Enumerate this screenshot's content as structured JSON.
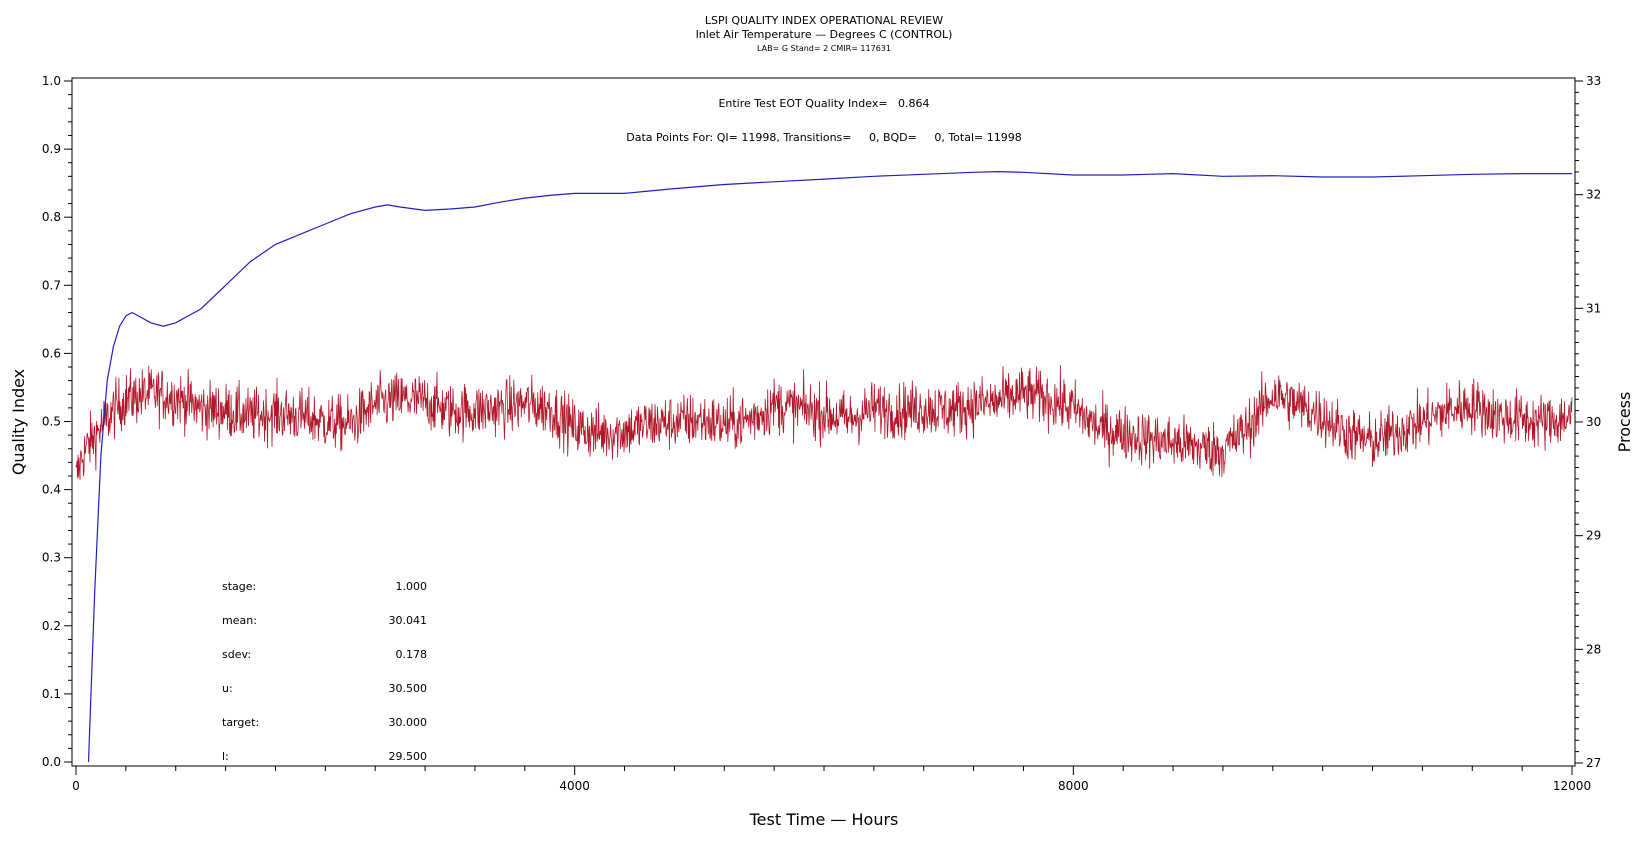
{
  "chart_data": {
    "type": "line",
    "title": "LSPI QUALITY INDEX OPERATIONAL REVIEW",
    "subtitle": "Inlet Air Temperature — Degrees C (CONTROL)",
    "subtitle2": "LAB= G Stand= 2 CMIR= 117631",
    "xlabel": "Test Time — Hours",
    "ylabel_left": "Quality Index",
    "ylabel_right": "Process",
    "xlim": [
      0,
      12000
    ],
    "ylim_left": [
      0.0,
      1.0
    ],
    "ylim_right": [
      27,
      33
    ],
    "x_ticks": [
      "0",
      "4000",
      "8000",
      "12000"
    ],
    "y_ticks_left": [
      "0.0",
      "0.1",
      "0.2",
      "0.3",
      "0.4",
      "0.5",
      "0.6",
      "0.7",
      "0.8",
      "0.9",
      "1.0"
    ],
    "y_ticks_right": [
      "27",
      "28",
      "29",
      "30",
      "31",
      "32",
      "33"
    ],
    "grid": false,
    "annotations": {
      "quality_index": "Entire Test EOT Quality Index=   0.864",
      "data_points": "Data Points For: QI= 11998, Transitions=     0, BQD=     0, Total= 11998"
    },
    "stats": [
      {
        "label": "stage:",
        "value": "1.000"
      },
      {
        "label": "mean:",
        "value": "30.041"
      },
      {
        "label": "sdev:",
        "value": "0.178"
      },
      {
        "label": "u:",
        "value": "30.500"
      },
      {
        "label": "target:",
        "value": "30.000"
      },
      {
        "label": "l:",
        "value": "29.500"
      }
    ],
    "series": [
      {
        "axis": "left",
        "color": "#2020c0",
        "x": [
          100,
          150,
          200,
          250,
          300,
          350,
          400,
          450,
          500,
          600,
          700,
          800,
          900,
          1000,
          1200,
          1400,
          1600,
          1800,
          2000,
          2200,
          2400,
          2500,
          2600,
          2800,
          3000,
          3200,
          3400,
          3600,
          3800,
          4000,
          4400,
          4800,
          5200,
          5600,
          6000,
          6400,
          6800,
          7200,
          7400,
          7600,
          8000,
          8400,
          8800,
          9200,
          9600,
          10000,
          10400,
          10800,
          11200,
          11600,
          12000
        ],
        "y": [
          0.0,
          0.25,
          0.45,
          0.56,
          0.61,
          0.64,
          0.655,
          0.66,
          0.655,
          0.645,
          0.64,
          0.645,
          0.655,
          0.665,
          0.7,
          0.735,
          0.76,
          0.775,
          0.79,
          0.805,
          0.815,
          0.818,
          0.815,
          0.81,
          0.812,
          0.815,
          0.822,
          0.828,
          0.832,
          0.835,
          0.835,
          0.842,
          0.848,
          0.852,
          0.856,
          0.86,
          0.863,
          0.866,
          0.867,
          0.866,
          0.862,
          0.862,
          0.864,
          0.86,
          0.861,
          0.859,
          0.859,
          0.861,
          0.863,
          0.864,
          0.864
        ]
      },
      {
        "axis": "right",
        "color": "#b0182a",
        "x": [
          0,
          50,
          100,
          200,
          300,
          400,
          600,
          800,
          1000,
          1200,
          1400,
          1600,
          1800,
          2000,
          2200,
          2400,
          2600,
          2800,
          3000,
          3200,
          3400,
          3600,
          3800,
          4000,
          4200,
          4400,
          4600,
          4800,
          5000,
          5200,
          5400,
          5600,
          5800,
          6000,
          6200,
          6400,
          6600,
          6800,
          7000,
          7200,
          7400,
          7600,
          7800,
          8000,
          8200,
          8400,
          8600,
          8800,
          9000,
          9200,
          9400,
          9600,
          9800,
          10000,
          10200,
          10400,
          10600,
          10800,
          11000,
          11200,
          11400,
          11600,
          11800,
          12000
        ],
        "y": [
          29.5,
          29.7,
          29.8,
          29.95,
          30.1,
          30.2,
          30.25,
          30.22,
          30.12,
          30.1,
          30.05,
          30.08,
          30.05,
          30.0,
          29.98,
          30.15,
          30.2,
          30.18,
          30.1,
          30.1,
          30.12,
          30.16,
          30.12,
          29.95,
          29.9,
          29.92,
          29.98,
          30.0,
          30.02,
          29.98,
          30.02,
          30.15,
          30.12,
          30.08,
          30.02,
          30.12,
          30.1,
          30.12,
          30.1,
          30.15,
          30.18,
          30.25,
          30.2,
          30.12,
          29.95,
          29.9,
          29.85,
          29.82,
          29.78,
          29.75,
          29.95,
          30.25,
          30.15,
          30.05,
          29.9,
          29.82,
          29.92,
          30.0,
          30.1,
          30.15,
          30.05,
          30.02,
          30.0,
          30.05
        ]
      }
    ]
  }
}
